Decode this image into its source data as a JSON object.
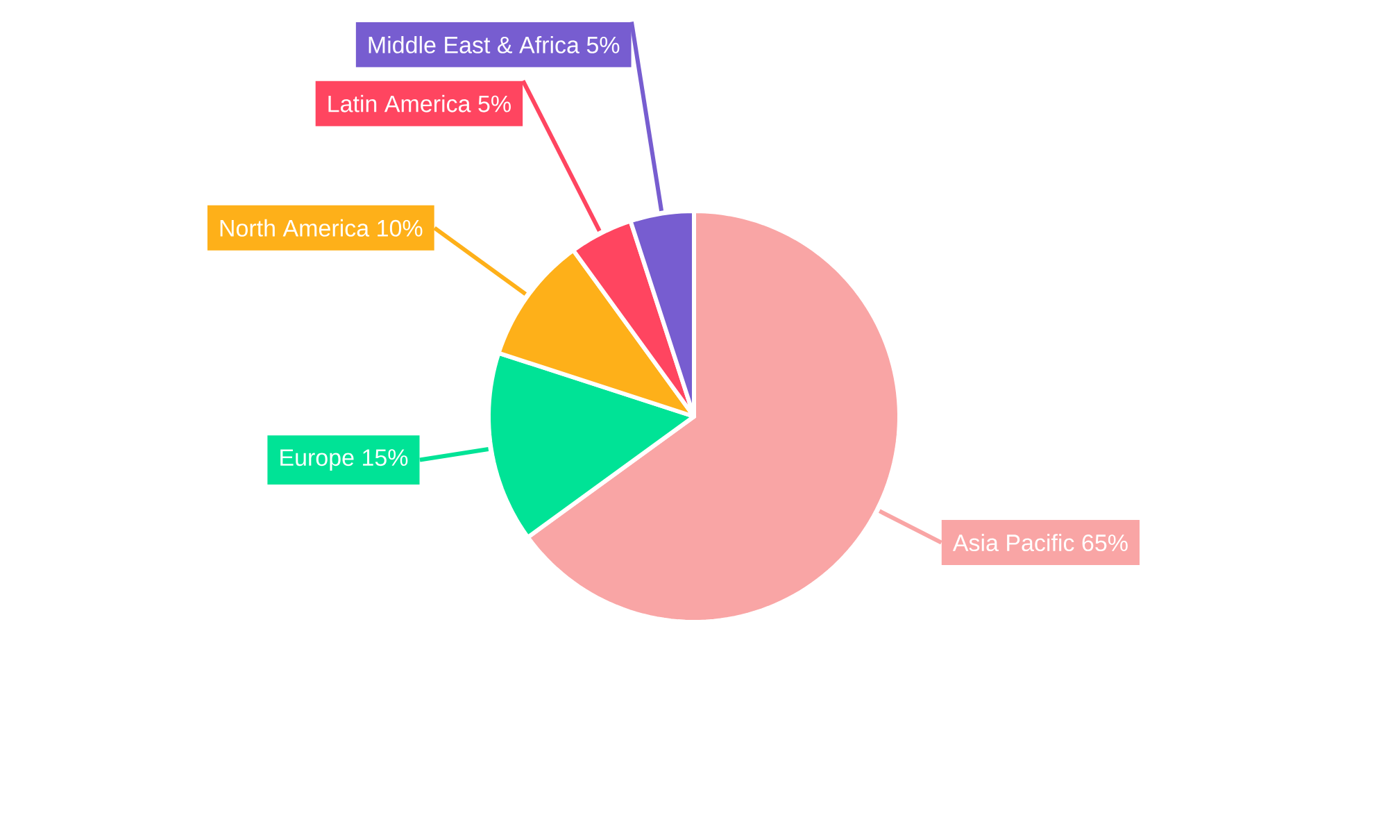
{
  "chart_data": {
    "type": "pie",
    "categories": [
      "Asia Pacific",
      "Europe",
      "North America",
      "Latin America",
      "Middle East & Africa"
    ],
    "values": [
      65,
      15,
      10,
      5,
      5
    ],
    "value_labels": [
      "65%",
      "15%",
      "10%",
      "5%",
      "5%"
    ],
    "colors": [
      "#f9a5a5",
      "#00e396",
      "#feb019",
      "#ff4560",
      "#775dd0"
    ]
  }
}
